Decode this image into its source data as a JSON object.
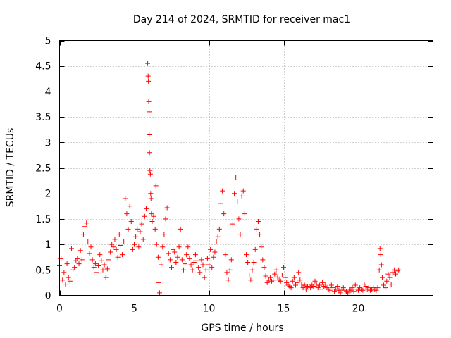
{
  "chart_data": {
    "type": "scatter",
    "title": "Day 214 of 2024, SRMTID for receiver mac1",
    "xlabel": "GPS time / hours",
    "ylabel": "SRMTID / TECUs",
    "xlim": [
      0,
      25
    ],
    "ylim": [
      0,
      5
    ],
    "xticks": [
      0,
      5,
      10,
      15,
      20
    ],
    "xtick_labels": [
      "0",
      "5",
      "10",
      "15",
      "20"
    ],
    "yticks": [
      0,
      0.5,
      1,
      1.5,
      2,
      2.5,
      3,
      3.5,
      4,
      4.5,
      5
    ],
    "ytick_labels": [
      "0",
      "0.5",
      "1",
      "1.5",
      "2",
      "2.5",
      "3",
      "3.5",
      "4",
      "4.5",
      "5"
    ],
    "grid": true,
    "marker": "+",
    "color": "#ff0000",
    "series": [
      {
        "name": "mac1",
        "points": [
          [
            0.0,
            0.58
          ],
          [
            0.1,
            0.72
          ],
          [
            0.2,
            0.3
          ],
          [
            0.3,
            0.45
          ],
          [
            0.4,
            0.22
          ],
          [
            0.5,
            0.62
          ],
          [
            0.6,
            0.35
          ],
          [
            0.7,
            0.28
          ],
          [
            0.8,
            0.92
          ],
          [
            0.9,
            0.5
          ],
          [
            1.0,
            0.55
          ],
          [
            1.1,
            0.68
          ],
          [
            1.2,
            0.72
          ],
          [
            1.3,
            0.62
          ],
          [
            1.4,
            0.88
          ],
          [
            1.5,
            0.7
          ],
          [
            1.6,
            1.2
          ],
          [
            1.7,
            1.35
          ],
          [
            1.8,
            1.42
          ],
          [
            1.9,
            1.05
          ],
          [
            2.0,
            0.82
          ],
          [
            2.1,
            0.95
          ],
          [
            2.2,
            0.7
          ],
          [
            2.3,
            0.55
          ],
          [
            2.4,
            0.62
          ],
          [
            2.5,
            0.45
          ],
          [
            2.6,
            0.58
          ],
          [
            2.7,
            0.8
          ],
          [
            2.8,
            0.68
          ],
          [
            2.9,
            0.5
          ],
          [
            3.0,
            0.6
          ],
          [
            3.1,
            0.35
          ],
          [
            3.2,
            0.52
          ],
          [
            3.3,
            0.7
          ],
          [
            3.4,
            0.85
          ],
          [
            3.5,
            1.0
          ],
          [
            3.6,
            0.95
          ],
          [
            3.7,
            1.1
          ],
          [
            3.8,
            0.9
          ],
          [
            3.9,
            0.75
          ],
          [
            4.0,
            1.2
          ],
          [
            4.1,
            0.98
          ],
          [
            4.2,
            0.8
          ],
          [
            4.3,
            1.05
          ],
          [
            4.4,
            1.9
          ],
          [
            4.5,
            1.6
          ],
          [
            4.6,
            1.3
          ],
          [
            4.7,
            1.75
          ],
          [
            4.8,
            1.45
          ],
          [
            4.9,
            0.9
          ],
          [
            5.0,
            1.0
          ],
          [
            5.1,
            1.15
          ],
          [
            5.2,
            1.3
          ],
          [
            5.3,
            0.95
          ],
          [
            5.4,
            1.25
          ],
          [
            5.5,
            1.4
          ],
          [
            5.6,
            1.1
          ],
          [
            5.7,
            1.55
          ],
          [
            5.8,
            1.7
          ],
          [
            5.85,
            4.6
          ],
          [
            5.9,
            4.55
          ],
          [
            5.93,
            4.3
          ],
          [
            5.95,
            4.2
          ],
          [
            5.97,
            3.8
          ],
          [
            5.99,
            3.6
          ],
          [
            6.0,
            3.15
          ],
          [
            6.02,
            2.8
          ],
          [
            6.05,
            2.45
          ],
          [
            6.08,
            2.38
          ],
          [
            6.1,
            2.0
          ],
          [
            6.12,
            1.9
          ],
          [
            6.15,
            1.6
          ],
          [
            6.2,
            1.45
          ],
          [
            6.3,
            1.55
          ],
          [
            6.4,
            1.3
          ],
          [
            6.45,
            2.15
          ],
          [
            6.5,
            1.0
          ],
          [
            6.6,
            0.75
          ],
          [
            6.65,
            0.25
          ],
          [
            6.7,
            0.05
          ],
          [
            6.8,
            0.6
          ],
          [
            6.9,
            0.95
          ],
          [
            7.0,
            1.2
          ],
          [
            7.1,
            1.5
          ],
          [
            7.2,
            1.72
          ],
          [
            7.3,
            0.82
          ],
          [
            7.4,
            0.7
          ],
          [
            7.5,
            0.55
          ],
          [
            7.6,
            0.9
          ],
          [
            7.7,
            0.85
          ],
          [
            7.8,
            0.65
          ],
          [
            7.9,
            0.75
          ],
          [
            8.0,
            0.95
          ],
          [
            8.1,
            1.3
          ],
          [
            8.2,
            0.7
          ],
          [
            8.3,
            0.5
          ],
          [
            8.4,
            0.62
          ],
          [
            8.5,
            0.8
          ],
          [
            8.6,
            0.95
          ],
          [
            8.7,
            0.72
          ],
          [
            8.8,
            0.6
          ],
          [
            8.9,
            0.5
          ],
          [
            9.0,
            0.65
          ],
          [
            9.1,
            0.8
          ],
          [
            9.2,
            0.68
          ],
          [
            9.3,
            0.55
          ],
          [
            9.4,
            0.45
          ],
          [
            9.5,
            0.7
          ],
          [
            9.6,
            0.6
          ],
          [
            9.7,
            0.35
          ],
          [
            9.8,
            0.5
          ],
          [
            9.9,
            0.72
          ],
          [
            10.0,
            0.6
          ],
          [
            10.1,
            0.9
          ],
          [
            10.2,
            0.55
          ],
          [
            10.3,
            0.75
          ],
          [
            10.4,
            0.85
          ],
          [
            10.5,
            1.05
          ],
          [
            10.6,
            1.15
          ],
          [
            10.7,
            1.3
          ],
          [
            10.8,
            1.8
          ],
          [
            10.9,
            2.05
          ],
          [
            11.0,
            1.6
          ],
          [
            11.1,
            0.8
          ],
          [
            11.2,
            0.45
          ],
          [
            11.3,
            0.3
          ],
          [
            11.4,
            0.5
          ],
          [
            11.5,
            0.7
          ],
          [
            11.6,
            1.4
          ],
          [
            11.7,
            2.0
          ],
          [
            11.8,
            2.32
          ],
          [
            11.9,
            1.85
          ],
          [
            12.0,
            1.5
          ],
          [
            12.1,
            1.2
          ],
          [
            12.2,
            1.95
          ],
          [
            12.3,
            2.05
          ],
          [
            12.4,
            1.6
          ],
          [
            12.5,
            0.8
          ],
          [
            12.6,
            0.65
          ],
          [
            12.7,
            0.4
          ],
          [
            12.8,
            0.3
          ],
          [
            12.9,
            0.5
          ],
          [
            13.0,
            0.65
          ],
          [
            13.1,
            0.9
          ],
          [
            13.2,
            1.3
          ],
          [
            13.3,
            1.45
          ],
          [
            13.4,
            1.2
          ],
          [
            13.5,
            0.95
          ],
          [
            13.6,
            0.7
          ],
          [
            13.7,
            0.55
          ],
          [
            13.8,
            0.38
          ],
          [
            13.9,
            0.25
          ],
          [
            14.0,
            0.3
          ],
          [
            14.1,
            0.35
          ],
          [
            14.2,
            0.28
          ],
          [
            14.3,
            0.3
          ],
          [
            14.4,
            0.42
          ],
          [
            14.5,
            0.5
          ],
          [
            14.6,
            0.36
          ],
          [
            14.7,
            0.3
          ],
          [
            14.8,
            0.28
          ],
          [
            14.9,
            0.4
          ],
          [
            15.0,
            0.55
          ],
          [
            15.1,
            0.35
          ],
          [
            15.2,
            0.25
          ],
          [
            15.3,
            0.2
          ],
          [
            15.4,
            0.18
          ],
          [
            15.5,
            0.15
          ],
          [
            15.6,
            0.28
          ],
          [
            15.7,
            0.35
          ],
          [
            15.8,
            0.2
          ],
          [
            15.9,
            0.25
          ],
          [
            16.0,
            0.45
          ],
          [
            16.1,
            0.3
          ],
          [
            16.2,
            0.22
          ],
          [
            16.3,
            0.15
          ],
          [
            16.4,
            0.2
          ],
          [
            16.5,
            0.12
          ],
          [
            16.6,
            0.18
          ],
          [
            16.7,
            0.22
          ],
          [
            16.8,
            0.15
          ],
          [
            16.9,
            0.2
          ],
          [
            17.0,
            0.18
          ],
          [
            17.1,
            0.28
          ],
          [
            17.2,
            0.22
          ],
          [
            17.3,
            0.15
          ],
          [
            17.4,
            0.2
          ],
          [
            17.5,
            0.12
          ],
          [
            17.6,
            0.25
          ],
          [
            17.7,
            0.18
          ],
          [
            17.8,
            0.22
          ],
          [
            17.9,
            0.15
          ],
          [
            18.0,
            0.12
          ],
          [
            18.1,
            0.1
          ],
          [
            18.2,
            0.2
          ],
          [
            18.3,
            0.15
          ],
          [
            18.4,
            0.08
          ],
          [
            18.5,
            0.12
          ],
          [
            18.6,
            0.18
          ],
          [
            18.7,
            0.1
          ],
          [
            18.8,
            0.05
          ],
          [
            18.9,
            0.12
          ],
          [
            19.0,
            0.15
          ],
          [
            19.1,
            0.1
          ],
          [
            19.2,
            0.08
          ],
          [
            19.3,
            0.05
          ],
          [
            19.4,
            0.12
          ],
          [
            19.5,
            0.1
          ],
          [
            19.6,
            0.15
          ],
          [
            19.7,
            0.08
          ],
          [
            19.8,
            0.2
          ],
          [
            19.9,
            0.12
          ],
          [
            20.0,
            0.1
          ],
          [
            20.1,
            0.15
          ],
          [
            20.2,
            0.12
          ],
          [
            20.3,
            0.1
          ],
          [
            20.4,
            0.22
          ],
          [
            20.5,
            0.18
          ],
          [
            20.6,
            0.12
          ],
          [
            20.7,
            0.15
          ],
          [
            20.8,
            0.1
          ],
          [
            20.9,
            0.12
          ],
          [
            21.0,
            0.15
          ],
          [
            21.1,
            0.12
          ],
          [
            21.2,
            0.1
          ],
          [
            21.3,
            0.15
          ],
          [
            21.4,
            0.5
          ],
          [
            21.45,
            0.92
          ],
          [
            21.5,
            0.8
          ],
          [
            21.55,
            0.6
          ],
          [
            21.6,
            0.35
          ],
          [
            21.7,
            0.2
          ],
          [
            21.8,
            0.15
          ],
          [
            21.9,
            0.28
          ],
          [
            22.0,
            0.42
          ],
          [
            22.1,
            0.35
          ],
          [
            22.2,
            0.22
          ],
          [
            22.3,
            0.45
          ],
          [
            22.4,
            0.5
          ],
          [
            22.5,
            0.42
          ],
          [
            22.6,
            0.48
          ],
          [
            22.7,
            0.5
          ]
        ]
      }
    ]
  }
}
